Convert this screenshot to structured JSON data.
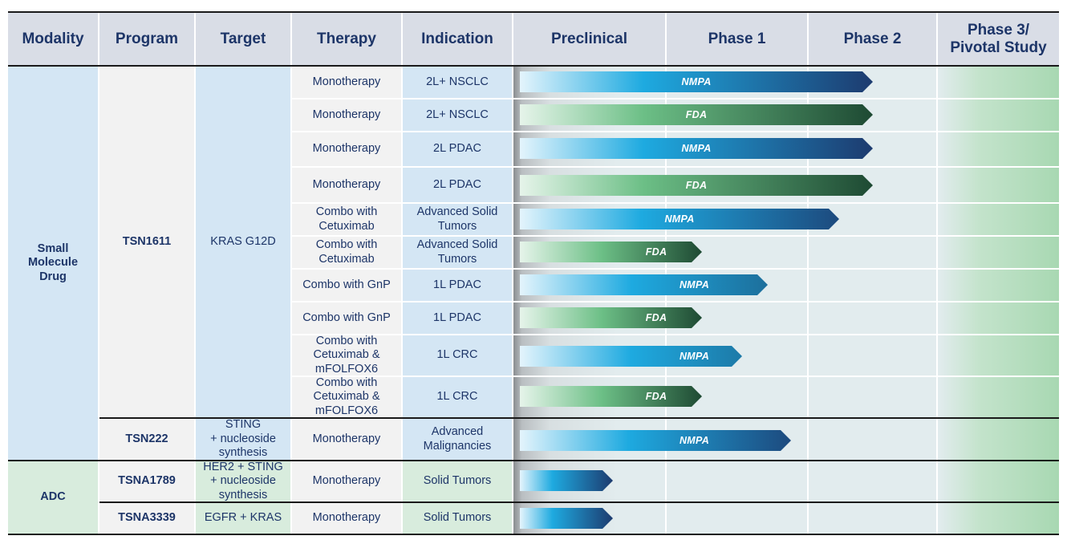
{
  "headers": {
    "modality": "Modality",
    "program": "Program",
    "target": "Target",
    "therapy": "Therapy",
    "indication": "Indication",
    "preclinical": "Preclinical",
    "phase1": "Phase 1",
    "phase2": "Phase 2",
    "phase3_line1": "Phase 3/",
    "phase3_line2": "Pivotal Study"
  },
  "modalities": {
    "small_molecule_line1": "Small",
    "small_molecule_line2": "Molecule",
    "small_molecule_line3": "Drug",
    "adc": "ADC"
  },
  "programs": {
    "tsn1611": {
      "name": "TSN1611",
      "target": "KRAS G12D"
    },
    "tsn222": {
      "name": "TSN222",
      "target_l1": "STING",
      "target_l2": "+ nucleoside",
      "target_l3": "synthesis"
    },
    "tsna1789": {
      "name": "TSNA1789",
      "target_l1": "HER2 + STING",
      "target_l2": "+ nucleoside",
      "target_l3": "synthesis"
    },
    "tsna3339": {
      "name": "TSNA3339",
      "target": "EGFR + KRAS"
    }
  },
  "rows": [
    {
      "therapy": "Monotherapy",
      "indication": "2L+ NSCLC",
      "agency": "NMPA",
      "progress_stage": "Phase 1 complete",
      "color": "#1d3b6f"
    },
    {
      "therapy": "Monotherapy",
      "indication": "2L+ NSCLC",
      "agency": "FDA",
      "progress_stage": "Phase 1 complete",
      "color": "#1e4a33"
    },
    {
      "therapy": "Monotherapy",
      "indication": "2L PDAC",
      "agency": "NMPA",
      "progress_stage": "Phase 1 complete",
      "color": "#1d3b6f"
    },
    {
      "therapy": "Monotherapy",
      "indication": "2L PDAC",
      "agency": "FDA",
      "progress_stage": "Phase 1 complete",
      "color": "#1e4a33"
    },
    {
      "therapy_l1": "Combo with",
      "therapy_l2": "Cetuximab",
      "indication_l1": "Advanced Solid",
      "indication_l2": "Tumors",
      "agency": "NMPA",
      "color": "#1d3b6f"
    },
    {
      "therapy_l1": "Combo with",
      "therapy_l2": "Cetuximab",
      "indication_l1": "Advanced Solid",
      "indication_l2": "Tumors",
      "agency": "FDA",
      "color": "#1e4a33"
    },
    {
      "therapy": "Combo with GnP",
      "indication": "1L PDAC",
      "agency": "NMPA",
      "color": "#1d3b6f"
    },
    {
      "therapy": "Combo with GnP",
      "indication": "1L PDAC",
      "agency": "FDA",
      "color": "#1e4a33"
    },
    {
      "therapy_l1": "Combo with",
      "therapy_l2": "Cetuximab &",
      "therapy_l3": "mFOLFOX6",
      "indication": "1L CRC",
      "agency": "NMPA",
      "color": "#1d3b6f"
    },
    {
      "therapy_l1": "Combo with",
      "therapy_l2": "Cetuximab &",
      "therapy_l3": "mFOLFOX6",
      "indication": "1L CRC",
      "agency": "FDA",
      "color": "#1e4a33"
    },
    {
      "therapy": "Monotherapy",
      "indication_l1": "Advanced",
      "indication_l2": "Malignancies",
      "agency": "NMPA",
      "color": "#1d3b6f"
    },
    {
      "therapy": "Monotherapy",
      "indication": "Solid Tumors",
      "agency": "",
      "color": "#1d3b6f"
    },
    {
      "therapy": "Monotherapy",
      "indication": "Solid Tumors",
      "agency": "",
      "color": "#1d3b6f"
    }
  ],
  "colors": {
    "header_bg": "#d9dde6",
    "header_text": "#1d3568",
    "small_molecule_bg": "#d4e6f4",
    "adc_bg": "#d8ecdd",
    "nmpa_start": "#e4f4fc",
    "nmpa_mid": "#1eaae0",
    "nmpa_end": "#1d3b6f",
    "fda_start": "#e6f4ea",
    "fda_mid": "#6cbf86",
    "fda_end": "#1e4a33"
  }
}
